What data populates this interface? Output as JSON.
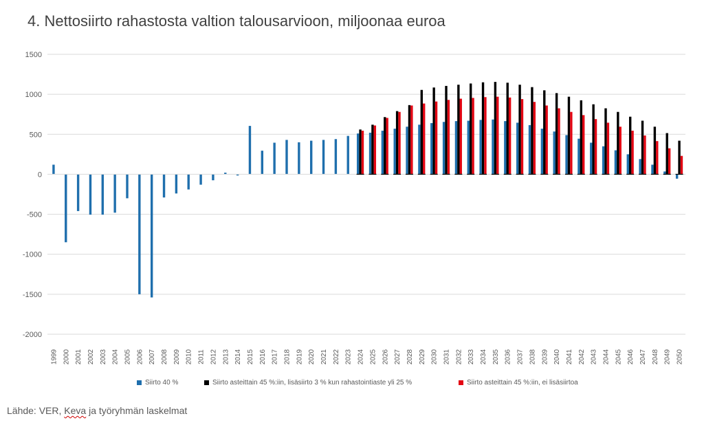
{
  "chart_data": {
    "type": "bar",
    "title": "4. Nettosiirto rahastosta valtion talousarvioon, miljoonaa euroa",
    "xlabel": "",
    "ylabel": "",
    "ylim": [
      -2000,
      1500
    ],
    "yticks": [
      1500,
      1000,
      500,
      0,
      -500,
      -1000,
      -1500,
      -2000
    ],
    "grid": true,
    "legend_position": "bottom",
    "categories": [
      "1999",
      "2000",
      "2001",
      "2002",
      "2003",
      "2004",
      "2005",
      "2006",
      "2007",
      "2008",
      "2009",
      "2010",
      "2011",
      "2012",
      "2013",
      "2014",
      "2015",
      "2016",
      "2017",
      "2018",
      "2019",
      "2020",
      "2021",
      "2022",
      "2023",
      "2024",
      "2025",
      "2026",
      "2027",
      "2028",
      "2029",
      "2030",
      "2031",
      "2032",
      "2033",
      "2034",
      "2035",
      "2036",
      "2037",
      "2038",
      "2039",
      "2040",
      "2041",
      "2042",
      "2043",
      "2044",
      "2045",
      "2046",
      "2047",
      "2048",
      "2049",
      "2050"
    ],
    "series": [
      {
        "name": "Siirto 40 %",
        "color": "#1f6fad",
        "values": [
          120,
          -850,
          -460,
          -505,
          -505,
          -480,
          -300,
          -1500,
          -1540,
          -290,
          -240,
          -190,
          -130,
          -75,
          20,
          -15,
          605,
          295,
          395,
          430,
          400,
          420,
          430,
          440,
          480,
          510,
          520,
          545,
          570,
          595,
          620,
          640,
          655,
          665,
          670,
          680,
          685,
          665,
          645,
          615,
          570,
          535,
          490,
          445,
          395,
          350,
          300,
          250,
          190,
          120,
          35,
          -55
        ]
      },
      {
        "name": "Siirto asteittain 45 %:iin, lisäsiirto 3 % kun rahastointiaste yli 25 %",
        "color": "#000000",
        "values": [
          null,
          null,
          null,
          null,
          null,
          null,
          null,
          null,
          null,
          null,
          null,
          null,
          null,
          null,
          null,
          null,
          null,
          null,
          null,
          null,
          null,
          null,
          null,
          null,
          null,
          560,
          620,
          715,
          790,
          865,
          1055,
          1085,
          1105,
          1120,
          1135,
          1150,
          1155,
          1145,
          1120,
          1090,
          1050,
          1015,
          970,
          925,
          875,
          825,
          780,
          720,
          670,
          595,
          515,
          420
        ]
      },
      {
        "name": "Siirto asteittain 45 %:iin, ei lisäsiirtoa",
        "color": "#e30613",
        "values": [
          null,
          null,
          null,
          null,
          null,
          null,
          null,
          null,
          null,
          null,
          null,
          null,
          null,
          null,
          null,
          null,
          null,
          null,
          null,
          null,
          null,
          null,
          null,
          null,
          null,
          545,
          610,
          705,
          780,
          860,
          885,
          910,
          930,
          945,
          955,
          965,
          970,
          960,
          940,
          905,
          860,
          825,
          780,
          740,
          690,
          645,
          595,
          545,
          485,
          415,
          325,
          230
        ]
      }
    ]
  },
  "legend": {
    "items": [
      {
        "label": "Siirto 40 %",
        "color": "#1f6fad"
      },
      {
        "label": "Siirto asteittain 45 %:iin, lisäsiirto 3 % kun rahastointiaste yli 25 %",
        "color": "#000000"
      },
      {
        "label": "Siirto asteittain 45 %:iin, ei lisäsiirtoa",
        "color": "#e30613"
      }
    ]
  },
  "source": {
    "prefix": "Lähde: VER, ",
    "keva": "Keva",
    "suffix": " ja työryhmän laskelmat"
  }
}
